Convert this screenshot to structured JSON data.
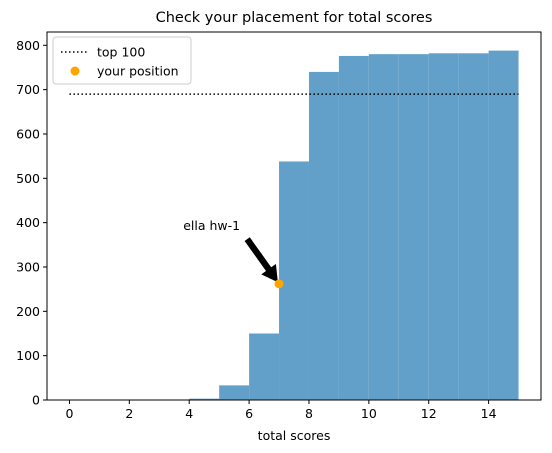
{
  "chart_data": {
    "type": "bar",
    "title": "Check your placement for total scores",
    "xlabel": "total scores",
    "ylabel": "",
    "xlim": [
      -0.75,
      15.75
    ],
    "ylim": [
      0,
      830
    ],
    "xticks": [
      0,
      2,
      4,
      6,
      8,
      10,
      12,
      14
    ],
    "yticks": [
      0,
      100,
      200,
      300,
      400,
      500,
      600,
      700,
      800
    ],
    "bins": [
      {
        "x0": 4,
        "x1": 5,
        "value": 3
      },
      {
        "x0": 5,
        "x1": 6,
        "value": 33
      },
      {
        "x0": 6,
        "x1": 7,
        "value": 150
      },
      {
        "x0": 7,
        "x1": 8,
        "value": 538
      },
      {
        "x0": 8,
        "x1": 9,
        "value": 740
      },
      {
        "x0": 9,
        "x1": 10,
        "value": 776
      },
      {
        "x0": 10,
        "x1": 11,
        "value": 780
      },
      {
        "x0": 11,
        "x1": 12,
        "value": 780
      },
      {
        "x0": 12,
        "x1": 13,
        "value": 782
      },
      {
        "x0": 13,
        "x1": 14,
        "value": 782
      },
      {
        "x0": 14,
        "x1": 15,
        "value": 788
      }
    ],
    "bar_color": "#62a0ca",
    "top_line": {
      "name": "top 100",
      "y": 690,
      "x_start": 0,
      "x_end": 15,
      "color": "#000000"
    },
    "position": {
      "name": "your position",
      "x": 7,
      "y": 262,
      "color": "#ffa500"
    },
    "annotation": {
      "text": "ella hw-1",
      "text_x": 3.8,
      "text_y": 383
    },
    "legend": {
      "placement": "top-left",
      "entries": [
        "top 100",
        "your position"
      ]
    },
    "grid": false
  }
}
